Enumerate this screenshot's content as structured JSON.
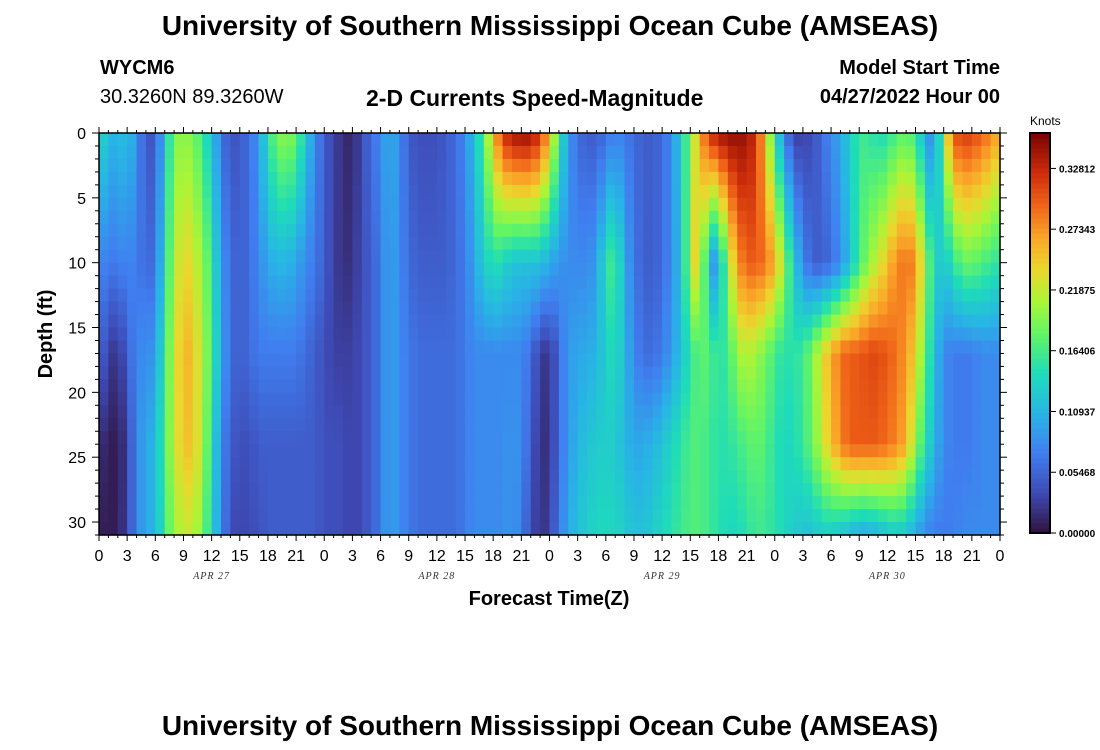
{
  "header": {
    "title": "University of Southern Mississippi Ocean Cube (AMSEAS)",
    "station": "WYCM6",
    "coords": "30.3260N  89.3260W",
    "subtitle": "2-D Currents Speed-Magnitude",
    "model_start_label": "Model Start Time",
    "model_start_value": "04/27/2022 Hour 00"
  },
  "footer": {
    "title": "University of Southern Mississippi Ocean Cube (AMSEAS)"
  },
  "chart_data": {
    "type": "heatmap",
    "title": "2-D Currents Speed-Magnitude",
    "xlabel": "Forecast Time(Z)",
    "ylabel": "Depth (ft)",
    "xlim": [
      0,
      96
    ],
    "ylim": [
      0,
      31
    ],
    "y_inverted": true,
    "x_ticks": [
      0,
      3,
      6,
      9,
      12,
      15,
      18,
      21,
      24,
      27,
      30,
      33,
      36,
      39,
      42,
      45,
      48,
      51,
      54,
      57,
      60,
      63,
      66,
      69,
      72,
      75,
      78,
      81,
      84,
      87,
      90,
      93,
      96
    ],
    "x_tick_labels": [
      "0",
      "3",
      "6",
      "9",
      "12",
      "15",
      "18",
      "21",
      "0",
      "3",
      "6",
      "9",
      "12",
      "15",
      "18",
      "21",
      "0",
      "3",
      "6",
      "9",
      "12",
      "15",
      "18",
      "21",
      "0",
      "3",
      "6",
      "9",
      "12",
      "15",
      "18",
      "21",
      "0"
    ],
    "y_ticks": [
      0,
      5,
      10,
      15,
      20,
      25,
      30
    ],
    "y_tick_labels": [
      "0",
      "5",
      "10",
      "15",
      "20",
      "25",
      "30"
    ],
    "date_labels": [
      {
        "hour": 12,
        "text": "APR 27"
      },
      {
        "hour": 36,
        "text": "APR 28"
      },
      {
        "hour": 60,
        "text": "APR 29"
      },
      {
        "hour": 84,
        "text": "APR 30"
      }
    ],
    "colorbar": {
      "unit": "Knots",
      "range": [
        0.0,
        0.36
      ],
      "tick_values": [
        0.0,
        0.05468,
        0.10937,
        0.16406,
        0.21875,
        0.27343,
        0.32812
      ],
      "tick_labels": [
        "0.00000",
        "0.05468",
        "0.10937",
        "0.16406",
        "0.21875",
        "0.27343",
        "0.32812"
      ],
      "colormap": "turbo"
    },
    "depth_levels_ft": [
      0,
      10,
      17,
      24,
      31
    ],
    "speed_knots_by_depth": {
      "time_hours": [
        0,
        1,
        2,
        3,
        4,
        5,
        6,
        7,
        8,
        9,
        10,
        11,
        12,
        13,
        14,
        15,
        16,
        17,
        18,
        19,
        20,
        21,
        22,
        23,
        24,
        25,
        26,
        27,
        28,
        29,
        30,
        31,
        32,
        33,
        34,
        35,
        36,
        37,
        38,
        39,
        40,
        41,
        42,
        43,
        44,
        45,
        46,
        47,
        48,
        49,
        50,
        51,
        52,
        53,
        54,
        55,
        56,
        57,
        58,
        59,
        60,
        61,
        62,
        63,
        64,
        65,
        66,
        67,
        68,
        69,
        70,
        71,
        72,
        73,
        74,
        75,
        76,
        77,
        78,
        79,
        80,
        81,
        82,
        83,
        84,
        85,
        86,
        87,
        88,
        89,
        90,
        91,
        92,
        93,
        94,
        95,
        96
      ],
      "depth_0": [
        0.14,
        0.12,
        0.1,
        0.13,
        0.08,
        0.05,
        0.04,
        0.12,
        0.19,
        0.2,
        0.19,
        0.16,
        0.12,
        0.07,
        0.04,
        0.05,
        0.06,
        0.09,
        0.15,
        0.19,
        0.2,
        0.18,
        0.13,
        0.08,
        0.05,
        0.03,
        0.02,
        0.01,
        0.04,
        0.06,
        0.08,
        0.11,
        0.08,
        0.05,
        0.04,
        0.04,
        0.04,
        0.05,
        0.06,
        0.08,
        0.12,
        0.17,
        0.25,
        0.32,
        0.34,
        0.35,
        0.345,
        0.32,
        0.26,
        0.16,
        0.09,
        0.06,
        0.05,
        0.05,
        0.06,
        0.08,
        0.07,
        0.06,
        0.05,
        0.05,
        0.06,
        0.08,
        0.13,
        0.19,
        0.26,
        0.32,
        0.34,
        0.35,
        0.35,
        0.345,
        0.32,
        0.25,
        0.15,
        0.08,
        0.03,
        0.03,
        0.04,
        0.06,
        0.08,
        0.1,
        0.13,
        0.16,
        0.16,
        0.14,
        0.15,
        0.17,
        0.18,
        0.16,
        0.1,
        0.07,
        0.2,
        0.3,
        0.32,
        0.31,
        0.3,
        0.28,
        0.26
      ],
      "depth_10": [
        0.08,
        0.07,
        0.07,
        0.08,
        0.07,
        0.06,
        0.06,
        0.14,
        0.21,
        0.24,
        0.23,
        0.2,
        0.16,
        0.09,
        0.06,
        0.05,
        0.06,
        0.08,
        0.1,
        0.11,
        0.11,
        0.1,
        0.08,
        0.07,
        0.05,
        0.03,
        0.02,
        0.02,
        0.04,
        0.05,
        0.07,
        0.1,
        0.08,
        0.06,
        0.05,
        0.05,
        0.05,
        0.05,
        0.06,
        0.07,
        0.1,
        0.13,
        0.15,
        0.14,
        0.12,
        0.12,
        0.12,
        0.12,
        0.1,
        0.09,
        0.08,
        0.08,
        0.08,
        0.09,
        0.15,
        0.17,
        0.1,
        0.07,
        0.05,
        0.05,
        0.06,
        0.08,
        0.12,
        0.2,
        0.27,
        0.08,
        0.1,
        0.2,
        0.27,
        0.3,
        0.3,
        0.29,
        0.26,
        0.2,
        0.13,
        0.08,
        0.05,
        0.05,
        0.06,
        0.08,
        0.12,
        0.16,
        0.2,
        0.22,
        0.25,
        0.28,
        0.29,
        0.28,
        0.2,
        0.14,
        0.12,
        0.15,
        0.18,
        0.18,
        0.17,
        0.16,
        0.15
      ],
      "depth_17": [
        0.06,
        0.03,
        0.02,
        0.05,
        0.08,
        0.08,
        0.09,
        0.16,
        0.22,
        0.26,
        0.25,
        0.21,
        0.17,
        0.1,
        0.06,
        0.05,
        0.06,
        0.07,
        0.07,
        0.07,
        0.07,
        0.07,
        0.06,
        0.05,
        0.04,
        0.03,
        0.03,
        0.03,
        0.04,
        0.05,
        0.07,
        0.1,
        0.08,
        0.07,
        0.06,
        0.06,
        0.06,
        0.06,
        0.06,
        0.07,
        0.08,
        0.08,
        0.08,
        0.08,
        0.08,
        0.08,
        0.06,
        0.03,
        0.02,
        0.06,
        0.09,
        0.1,
        0.1,
        0.11,
        0.13,
        0.15,
        0.11,
        0.08,
        0.06,
        0.06,
        0.07,
        0.09,
        0.12,
        0.15,
        0.18,
        0.17,
        0.15,
        0.16,
        0.2,
        0.22,
        0.2,
        0.19,
        0.16,
        0.15,
        0.15,
        0.16,
        0.19,
        0.23,
        0.26,
        0.29,
        0.3,
        0.3,
        0.31,
        0.31,
        0.3,
        0.29,
        0.27,
        0.24,
        0.18,
        0.12,
        0.08,
        0.07,
        0.07,
        0.07,
        0.08,
        0.08,
        0.08
      ],
      "depth_24": [
        0.02,
        0.01,
        0.005,
        0.03,
        0.08,
        0.1,
        0.11,
        0.17,
        0.22,
        0.25,
        0.25,
        0.21,
        0.15,
        0.08,
        0.05,
        0.04,
        0.04,
        0.05,
        0.05,
        0.05,
        0.05,
        0.05,
        0.05,
        0.05,
        0.04,
        0.04,
        0.04,
        0.03,
        0.04,
        0.05,
        0.07,
        0.1,
        0.08,
        0.07,
        0.06,
        0.06,
        0.06,
        0.06,
        0.06,
        0.07,
        0.08,
        0.08,
        0.08,
        0.08,
        0.09,
        0.08,
        0.05,
        0.02,
        0.02,
        0.06,
        0.09,
        0.11,
        0.12,
        0.13,
        0.13,
        0.13,
        0.11,
        0.1,
        0.1,
        0.11,
        0.12,
        0.14,
        0.15,
        0.17,
        0.17,
        0.16,
        0.15,
        0.15,
        0.16,
        0.17,
        0.18,
        0.17,
        0.15,
        0.14,
        0.14,
        0.16,
        0.18,
        0.22,
        0.25,
        0.28,
        0.3,
        0.3,
        0.3,
        0.3,
        0.29,
        0.28,
        0.26,
        0.2,
        0.15,
        0.11,
        0.08,
        0.07,
        0.07,
        0.07,
        0.08,
        0.08,
        0.08
      ],
      "depth_31": [
        0.01,
        0.005,
        0.01,
        0.03,
        0.08,
        0.1,
        0.11,
        0.16,
        0.2,
        0.22,
        0.22,
        0.19,
        0.14,
        0.08,
        0.04,
        0.03,
        0.04,
        0.04,
        0.05,
        0.05,
        0.05,
        0.05,
        0.05,
        0.05,
        0.04,
        0.04,
        0.04,
        0.03,
        0.04,
        0.05,
        0.07,
        0.1,
        0.08,
        0.07,
        0.06,
        0.06,
        0.06,
        0.06,
        0.06,
        0.07,
        0.08,
        0.08,
        0.08,
        0.08,
        0.09,
        0.07,
        0.04,
        0.02,
        0.03,
        0.07,
        0.1,
        0.12,
        0.13,
        0.14,
        0.14,
        0.14,
        0.13,
        0.12,
        0.12,
        0.13,
        0.14,
        0.15,
        0.16,
        0.17,
        0.17,
        0.16,
        0.15,
        0.14,
        0.14,
        0.15,
        0.16,
        0.16,
        0.15,
        0.14,
        0.13,
        0.12,
        0.12,
        0.13,
        0.13,
        0.12,
        0.11,
        0.1,
        0.1,
        0.11,
        0.12,
        0.13,
        0.12,
        0.1,
        0.08,
        0.07,
        0.07,
        0.07,
        0.08,
        0.08,
        0.08,
        0.08,
        0.08
      ]
    }
  }
}
